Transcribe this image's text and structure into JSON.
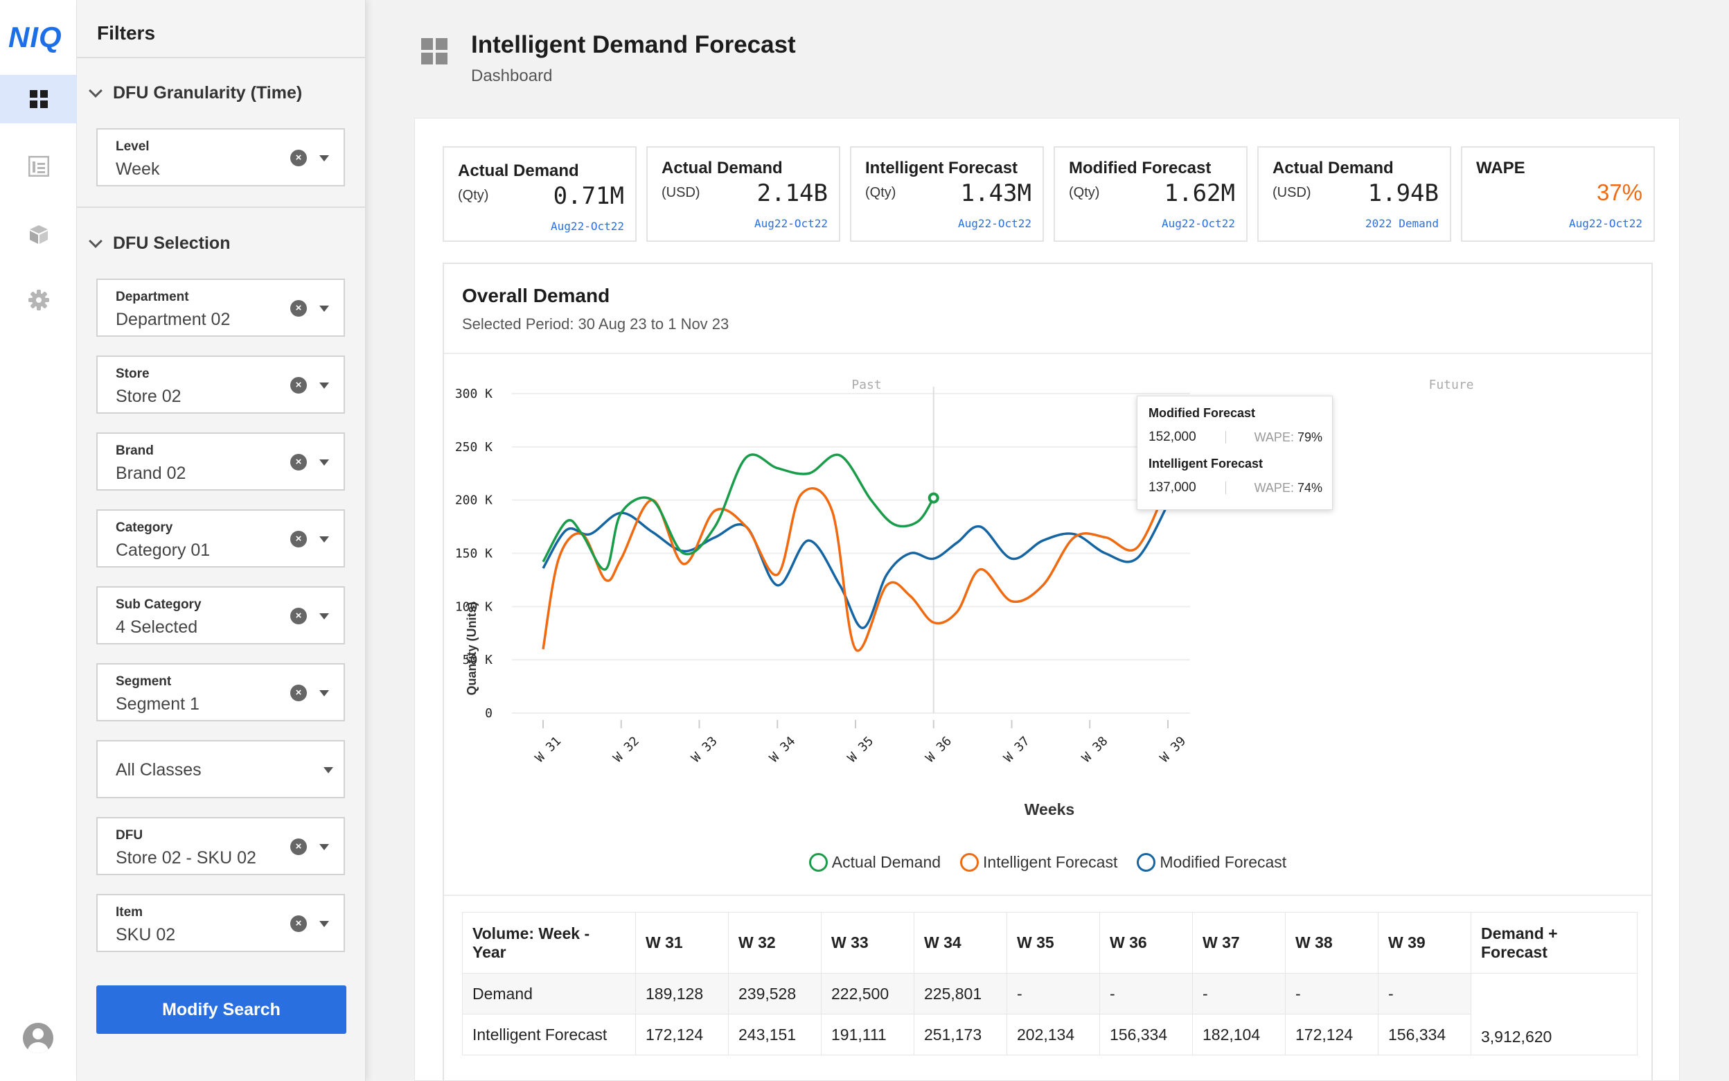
{
  "app": {
    "logo": "NIQ"
  },
  "rail": {
    "items": [
      "dashboard-icon",
      "report-icon",
      "package-icon",
      "gear-icon"
    ],
    "user": "user-avatar-icon"
  },
  "filters": {
    "title": "Filters",
    "section_time": "DFU Granularity (Time)",
    "section_selection": "DFU Selection",
    "level": {
      "label": "Level",
      "value": "Week"
    },
    "department": {
      "label": "Department",
      "value": "Department 02"
    },
    "store": {
      "label": "Store",
      "value": "Store 02"
    },
    "brand": {
      "label": "Brand",
      "value": "Brand 02"
    },
    "category": {
      "label": "Category",
      "value": "Category 01"
    },
    "sub_category": {
      "label": "Sub Category",
      "value": "4 Selected"
    },
    "segment": {
      "label": "Segment",
      "value": "Segment 1"
    },
    "classes": {
      "value": "All Classes"
    },
    "dfu": {
      "label": "DFU",
      "value": "Store 02 - SKU 02"
    },
    "item": {
      "label": "Item",
      "value": "SKU 02"
    },
    "modify_label": "Modify Search"
  },
  "header": {
    "title": "Intelligent Demand Forecast",
    "subtitle": "Dashboard"
  },
  "kpis": [
    {
      "title": "Actual Demand",
      "unit": "(Qty)",
      "value": "0.71M",
      "period": "Aug22-Oct22"
    },
    {
      "title": "Actual Demand",
      "unit": "(USD)",
      "value": "2.14B",
      "period": "Aug22-Oct22"
    },
    {
      "title": "Intelligent Forecast",
      "unit": "(Qty)",
      "value": "1.43M",
      "period": "Aug22-Oct22"
    },
    {
      "title": "Modified Forecast",
      "unit": "(Qty)",
      "value": "1.62M",
      "period": "Aug22-Oct22"
    },
    {
      "title": "Actual Demand",
      "unit": "(USD)",
      "value": "1.94B",
      "period": "2022 Demand"
    },
    {
      "title": "WAPE",
      "unit": "",
      "value": "37%",
      "period": "Aug22-Oct22"
    }
  ],
  "chart": {
    "title": "Overall Demand",
    "subtitle": "Selected Period: 30 Aug 23 to 1 Nov 23",
    "past_label": "Past",
    "future_label": "Future",
    "tooltip": {
      "series1": "Modified Forecast",
      "value1": "152,000",
      "wape_label1": "WAPE:",
      "wape1": "79%",
      "series2": "Intelligent Forecast",
      "value2": "137,000",
      "wape_label2": "WAPE:",
      "wape2": "74%"
    }
  },
  "chart_data": {
    "type": "line",
    "title": "Overall Demand",
    "xlabel": "Weeks",
    "ylabel": "Quantity (Units)",
    "ylim": [
      0,
      300000
    ],
    "yticks": [
      "0",
      "50 K",
      "100 K",
      "150 K",
      "200 K",
      "250 K",
      "300 K"
    ],
    "categories": [
      "W 31",
      "W 32",
      "W 33",
      "W 34",
      "W 35",
      "W 36",
      "W 37",
      "W 38",
      "W 39"
    ],
    "grid": true,
    "legend": "bottom-center",
    "split_at": 5,
    "series": [
      {
        "name": "Actual Demand",
        "color": "#1a9c4a",
        "x": [
          31,
          31.3,
          31.5,
          31.8,
          32,
          32.4,
          32.8,
          33.2,
          33.6,
          34,
          34.4,
          34.8,
          35.2,
          35.5,
          35.8,
          36
        ],
        "y": [
          142000,
          180000,
          168000,
          135000,
          188000,
          200000,
          150000,
          175000,
          240000,
          230000,
          225000,
          242000,
          200000,
          177000,
          180000,
          202000
        ]
      },
      {
        "name": "Intelligent Forecast",
        "color": "#f06a11",
        "x": [
          31,
          31.2,
          31.5,
          31.8,
          32,
          32.4,
          32.8,
          33.2,
          33.6,
          34,
          34.3,
          34.7,
          35,
          35.4,
          35.7,
          36,
          36.3,
          36.6,
          37,
          37.4,
          37.8,
          38.2,
          38.6,
          39
        ],
        "y": [
          60000,
          145000,
          168000,
          125000,
          145000,
          200000,
          140000,
          190000,
          175000,
          130000,
          205000,
          190000,
          60000,
          120000,
          110000,
          85000,
          95000,
          135000,
          105000,
          120000,
          165000,
          165000,
          155000,
          215000
        ]
      },
      {
        "name": "Modified Forecast",
        "color": "#1565a3",
        "x": [
          31,
          31.3,
          31.6,
          32,
          32.4,
          32.8,
          33.2,
          33.6,
          34,
          34.4,
          34.8,
          35.1,
          35.4,
          35.7,
          36,
          36.3,
          36.6,
          37,
          37.4,
          37.8,
          38.2,
          38.6,
          39
        ],
        "y": [
          136000,
          172000,
          168000,
          188000,
          170000,
          152000,
          165000,
          175000,
          120000,
          162000,
          120000,
          80000,
          130000,
          150000,
          145000,
          160000,
          175000,
          145000,
          162000,
          168000,
          150000,
          145000,
          196000
        ]
      }
    ],
    "highlight_point": {
      "series": "Actual Demand",
      "x": 36,
      "y": 202000
    }
  },
  "table": {
    "header": [
      "Volume: Week - Year",
      "W 31",
      "W 32",
      "W 33",
      "W 34",
      "W 35",
      "W 36",
      "W 37",
      "W 38",
      "W 39",
      "Demand + Forecast"
    ],
    "rows": [
      {
        "label": "Demand",
        "values": [
          "189,128",
          "239,528",
          "222,500",
          "225,801",
          "-",
          "-",
          "-",
          "-",
          "-"
        ]
      },
      {
        "label": "Intelligent Forecast",
        "values": [
          "172,124",
          "243,151",
          "191,111",
          "251,173",
          "202,134",
          "156,334",
          "182,104",
          "172,124",
          "156,334"
        ]
      }
    ],
    "total": "3,912,620"
  }
}
